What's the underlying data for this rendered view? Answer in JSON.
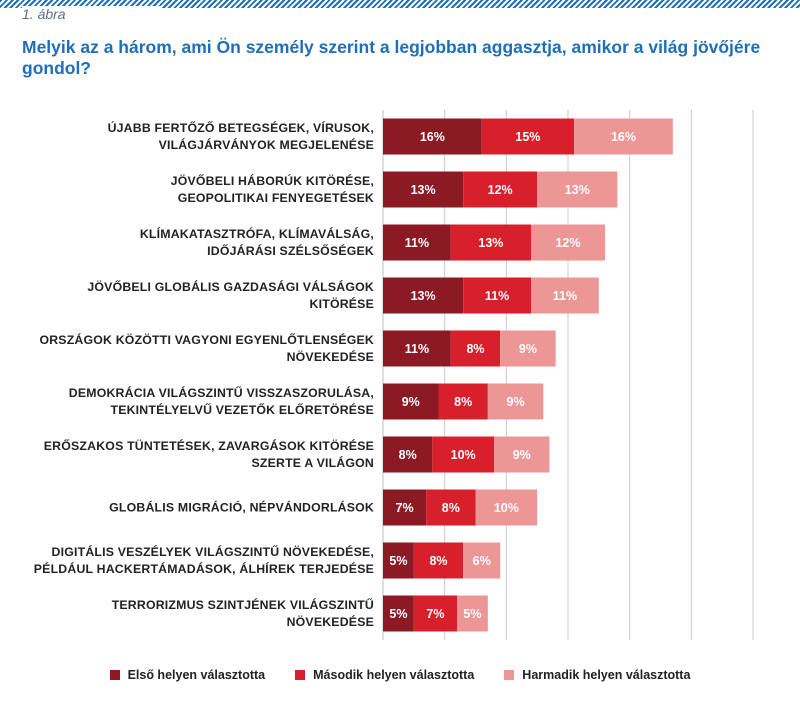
{
  "figure_label": "1. ábra",
  "title": "Melyik az a három, ami Ön személy szerint a legjobban aggasztja, amikor a világ jövőjére gondol?",
  "colors": {
    "first": "#8b1a24",
    "second": "#d8202c",
    "third": "#ec9795",
    "grid": "#c9c9c9"
  },
  "chart_data": {
    "type": "bar",
    "orientation": "horizontal",
    "stacked": true,
    "title": "Melyik az a három, ami Ön személy szerint a legjobban aggasztja, amikor a világ jövőjére gondol?",
    "xlim": [
      0,
      60
    ],
    "grid": true,
    "legend_position": "bottom",
    "categories": [
      [
        "ÚJABB FERTŐZŐ BETEGSÉGEK, VÍRUSOK,",
        "VILÁGJÁRVÁNYOK MEGJELENÉSE"
      ],
      [
        "JÖVŐBELI HÁBORÚK KITÖRÉSE,",
        "GEOPOLITIKAI FENYEGETÉSEK"
      ],
      [
        "KLÍMAKATASZTRÓFA, KLÍMAVÁLSÁG,",
        "IDŐJÁRÁSI SZÉLSŐSÉGEK"
      ],
      [
        "JÖVŐBELI GLOBÁLIS GAZDASÁGI VÁLSÁGOK",
        "KITÖRÉSE"
      ],
      [
        "ORSZÁGOK KÖZÖTTI VAGYONI EGYENLŐTLENSÉGEK",
        "NÖVEKEDÉSE"
      ],
      [
        "DEMOKRÁCIA VILÁGSZINTŰ VISSZASZORULÁSA,",
        "TEKINTÉLYELVŰ VEZETŐK ELŐRETÖRÉSE"
      ],
      [
        "ERŐSZAKOS TÜNTETÉSEK, ZAVARGÁSOK KITÖRÉSE",
        "SZERTE A VILÁGON"
      ],
      [
        "GLOBÁLIS MIGRÁCIÓ, NÉPVÁNDORLÁSOK"
      ],
      [
        "DIGITÁLIS VESZÉLYEK VILÁGSZINTŰ NÖVEKEDÉSE,",
        "PÉLDÁUL HACKERTÁMADÁSOK, ÁLHÍREK TERJEDÉSE"
      ],
      [
        "TERRORIZMUS SZINTJÉNEK VILÁGSZINTŰ",
        "NÖVEKEDÉSE"
      ]
    ],
    "series": [
      {
        "name": "Első helyen választotta",
        "values": [
          16,
          13,
          11,
          13,
          11,
          9,
          8,
          7,
          5,
          5
        ],
        "labels": [
          "16%",
          "13%",
          "11%",
          "13%",
          "11%",
          "9%",
          "8%",
          "7%",
          "5%",
          "5%"
        ]
      },
      {
        "name": "Második helyen választotta",
        "values": [
          15,
          12,
          13,
          11,
          8,
          8,
          10,
          8,
          8,
          7
        ],
        "labels": [
          "15%",
          "12%",
          "13%",
          "11%",
          "8%",
          "8%",
          "10%",
          "8%",
          "8%",
          "7%"
        ]
      },
      {
        "name": "Harmadik helyen választotta",
        "values": [
          16,
          13,
          12,
          11,
          9,
          9,
          9,
          10,
          6,
          5
        ],
        "labels": [
          "16%",
          "13%",
          "12%",
          "11%",
          "9%",
          "9%",
          "9%",
          "10%",
          "6%",
          "5%"
        ]
      }
    ]
  }
}
